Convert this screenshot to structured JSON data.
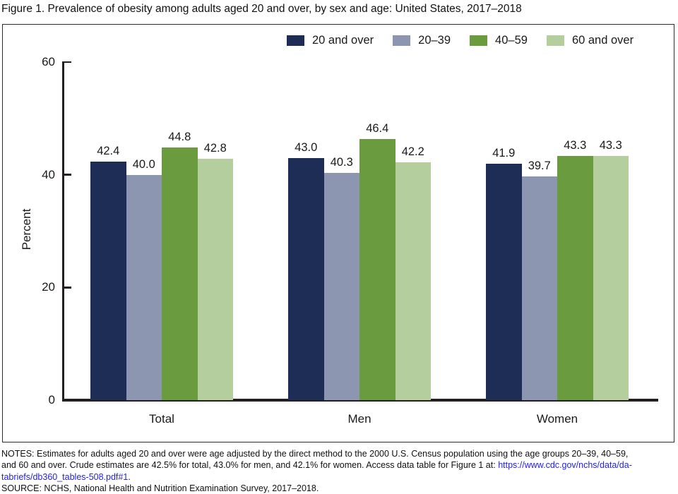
{
  "title": "Figure 1. Prevalence of obesity among adults aged 20 and over, by sex and age: United States, 2017–2018",
  "chart_data": {
    "type": "bar",
    "categories": [
      "Total",
      "Men",
      "Women"
    ],
    "series": [
      {
        "name": "20 and over",
        "color": "#1e2d55",
        "values": [
          42.4,
          43.0,
          41.9
        ]
      },
      {
        "name": "20–39",
        "color": "#8c96b1",
        "values": [
          40.0,
          40.3,
          39.7
        ]
      },
      {
        "name": "40–59",
        "color": "#6a9b3e",
        "values": [
          44.8,
          46.4,
          43.3
        ]
      },
      {
        "name": "60 and over",
        "color": "#b4ce9d",
        "values": [
          42.8,
          42.2,
          43.3
        ]
      }
    ],
    "title": "Figure 1. Prevalence of obesity among adults aged 20 and over, by sex and age: United States, 2017–2018",
    "xlabel": "",
    "ylabel": "Percent",
    "ylim": [
      0,
      60
    ],
    "yticks": [
      0,
      20,
      40,
      60
    ],
    "grid": false,
    "legend_position": "top",
    "value_labels": true
  },
  "notes": {
    "line1": "NOTES: Estimates for adults aged 20 and over were age adjusted by the direct method to the 2000 U.S. Census population using the age groups 20–39, 40–59,",
    "line2_text": "and 60 and over. Crude estimates are 42.5% for total, 43.0% for men, and 42.1% for women. Access data table for Figure 1 at: ",
    "line2_link": "https://www.cdc.gov/nchs/data/da-",
    "line3_link": "tabriefs/db360_tables-508.pdf#1",
    "line3_text": ".",
    "source": "SOURCE: NCHS, National Health and Nutrition Examination Survey, 2017–2018."
  }
}
